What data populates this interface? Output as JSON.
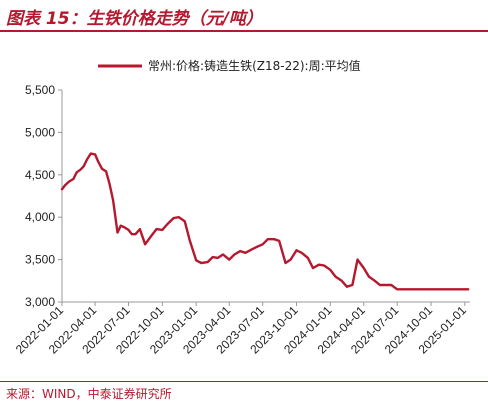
{
  "title": "图表 15：生铁价格走势（元/吨）",
  "source": "来源：WIND，中泰证券研究所",
  "chart_data": {
    "type": "line",
    "title": "图表 15：生铁价格走势（元/吨）",
    "ylim": [
      3000,
      5500
    ],
    "y_ticks": [
      3000,
      3500,
      4000,
      4500,
      5000,
      5500
    ],
    "y_tick_labels": [
      "3,000",
      "3,500",
      "4,000",
      "4,500",
      "5,000",
      "5,500"
    ],
    "x_ticks": [
      "2022-01-01",
      "2022-04-01",
      "2022-07-01",
      "2022-10-01",
      "2023-01-01",
      "2023-04-01",
      "2023-07-01",
      "2023-10-01",
      "2024-01-01",
      "2024-04-01",
      "2024-07-01",
      "2024-10-01",
      "2025-01-01"
    ],
    "xlim": [
      "2022-01-01",
      "2025-01-15"
    ],
    "legend_position": "top",
    "color": "#b5192f",
    "series": [
      {
        "name": "常州:价格:铸造生铁(Z18-22):周:平均值",
        "x": [
          "2022-01-01",
          "2022-01-10",
          "2022-01-20",
          "2022-02-01",
          "2022-02-10",
          "2022-02-20",
          "2022-03-01",
          "2022-03-10",
          "2022-03-20",
          "2022-04-01",
          "2022-04-10",
          "2022-04-20",
          "2022-05-01",
          "2022-05-10",
          "2022-05-20",
          "2022-06-01",
          "2022-06-10",
          "2022-06-20",
          "2022-07-01",
          "2022-07-10",
          "2022-07-20",
          "2022-08-01",
          "2022-08-15",
          "2022-09-01",
          "2022-09-15",
          "2022-10-01",
          "2022-10-15",
          "2022-11-01",
          "2022-11-15",
          "2022-12-01",
          "2022-12-15",
          "2023-01-01",
          "2023-01-15",
          "2023-02-01",
          "2023-02-15",
          "2023-03-01",
          "2023-03-15",
          "2023-04-01",
          "2023-04-15",
          "2023-05-01",
          "2023-05-15",
          "2023-06-01",
          "2023-06-15",
          "2023-07-01",
          "2023-07-15",
          "2023-08-01",
          "2023-08-15",
          "2023-09-01",
          "2023-09-15",
          "2023-10-01",
          "2023-10-15",
          "2023-11-01",
          "2023-11-15",
          "2023-12-01",
          "2023-12-15",
          "2024-01-01",
          "2024-01-15",
          "2024-02-01",
          "2024-02-15",
          "2024-03-01",
          "2024-03-15",
          "2024-04-01",
          "2024-04-15",
          "2024-05-01",
          "2024-05-15",
          "2024-06-01",
          "2024-06-15",
          "2024-07-01",
          "2024-07-15",
          "2024-08-01",
          "2024-08-15",
          "2024-09-01",
          "2024-09-15",
          "2024-10-01",
          "2024-10-08",
          "2024-10-20",
          "2024-11-01",
          "2024-11-15",
          "2024-12-01",
          "2024-12-15",
          "2025-01-01",
          "2025-01-10"
        ],
        "values": [
          4330,
          4380,
          4420,
          4450,
          4530,
          4560,
          4600,
          4680,
          4750,
          4740,
          4650,
          4570,
          4540,
          4400,
          4200,
          3820,
          3900,
          3880,
          3850,
          3800,
          3800,
          3860,
          3680,
          3780,
          3860,
          3850,
          3920,
          3990,
          4000,
          3950,
          3720,
          3490,
          3460,
          3470,
          3530,
          3520,
          3560,
          3500,
          3560,
          3600,
          3580,
          3620,
          3650,
          3680,
          3740,
          3740,
          3720,
          3460,
          3500,
          3610,
          3580,
          3520,
          3400,
          3440,
          3430,
          3380,
          3300,
          3250,
          3180,
          3200,
          3500,
          3400,
          3300,
          3250,
          3200,
          3200,
          3200,
          3150,
          3150,
          3150,
          3150,
          3150,
          3150,
          3150,
          3150,
          3150,
          3150,
          3150,
          3150,
          3150,
          3150,
          3150
        ]
      }
    ]
  }
}
